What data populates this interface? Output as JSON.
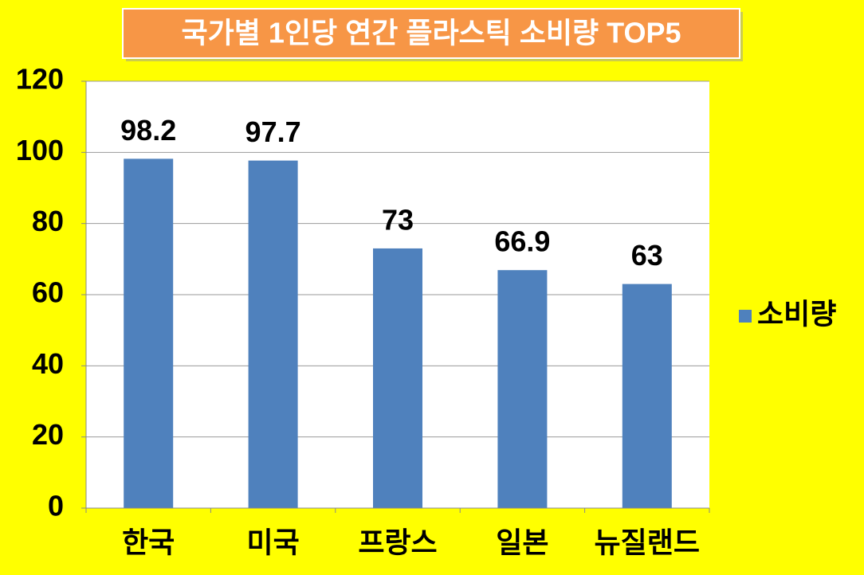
{
  "chart_data": {
    "type": "bar",
    "title": "국가별 1인당 연간 플라스틱 소비량 TOP5",
    "categories": [
      "한국",
      "미국",
      "프랑스",
      "일본",
      "뉴질랜드"
    ],
    "series": [
      {
        "name": "소비량",
        "color": "#4f81bd",
        "values": [
          98.2,
          97.7,
          73,
          66.9,
          63
        ]
      }
    ],
    "ylim": [
      0,
      120
    ],
    "yticks": [
      0,
      20,
      40,
      60,
      80,
      100,
      120
    ],
    "grid": true,
    "legend": "right",
    "data_labels": true
  }
}
